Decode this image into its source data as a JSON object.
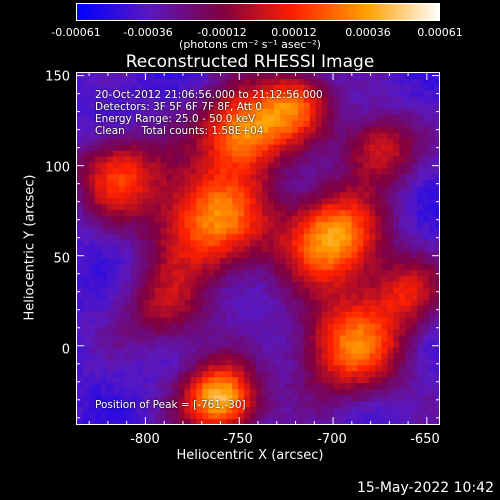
{
  "chart_data": {
    "type": "heatmap",
    "title": "Reconstructed RHESSI Image",
    "xlabel": "Heliocentric X (arcsec)",
    "ylabel": "Heliocentric Y (arcsec)",
    "xlim": [
      -837,
      -643
    ],
    "ylim": [
      -44,
      152
    ],
    "x_ticks": [
      "-800",
      "-750",
      "-700",
      "-650"
    ],
    "x_tick_values": [
      -800,
      -750,
      -700,
      -650
    ],
    "y_ticks": [
      "0",
      "50",
      "100",
      "150"
    ],
    "y_tick_values": [
      0,
      50,
      100,
      150
    ],
    "colorbar": {
      "ticks": [
        "-0.00061",
        "-0.00036",
        "-0.00012",
        "0.00012",
        "0.00036",
        "0.00061"
      ],
      "range": [
        -0.00061,
        0.00061
      ],
      "unit": "(photons cm⁻² s⁻¹ asec⁻²)",
      "colors": [
        "#0000ff",
        "#5a18c0",
        "#800040",
        "#ff2000",
        "#ffa000",
        "#ffffff"
      ]
    },
    "annotations": {
      "time": "20-Oct-2012 21:06:56.000 to 21:12:56.000",
      "detectors": "Detectors: 3F 5F 6F 7F 8F, Att 0",
      "energy": "Energy Range: 25.0 - 50.0 keV",
      "method": "Clean     Total counts: 1.58E+04",
      "peak": "Position of Peak = [-761,-30]"
    },
    "sources": [
      {
        "x": -760,
        "y": -30,
        "intensity": 1.0,
        "r": 14
      },
      {
        "x": -748,
        "y": 120,
        "intensity": 0.85,
        "r": 16
      },
      {
        "x": -765,
        "y": 70,
        "intensity": 0.8,
        "r": 22
      },
      {
        "x": -700,
        "y": 60,
        "intensity": 0.9,
        "r": 18
      },
      {
        "x": -690,
        "y": 0,
        "intensity": 0.75,
        "r": 20
      },
      {
        "x": -815,
        "y": 95,
        "intensity": 0.6,
        "r": 16
      },
      {
        "x": -720,
        "y": 135,
        "intensity": 0.65,
        "r": 14
      },
      {
        "x": -675,
        "y": 110,
        "intensity": 0.55,
        "r": 14
      },
      {
        "x": -790,
        "y": 20,
        "intensity": 0.4,
        "r": 16
      },
      {
        "x": -660,
        "y": 30,
        "intensity": 0.45,
        "r": 14
      }
    ],
    "background": -0.3
  },
  "footer": "15-May-2022 10:42"
}
